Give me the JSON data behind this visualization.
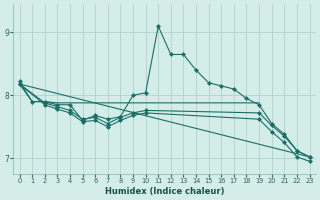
{
  "xlabel": "Humidex (Indice chaleur)",
  "bg_color": "#d4ede9",
  "line_color": "#1a6e66",
  "grid_color": "#a8ceca",
  "xlim": [
    -0.5,
    23.5
  ],
  "ylim": [
    6.75,
    9.45
  ],
  "yticks": [
    7,
    8,
    9
  ],
  "xticks": [
    0,
    1,
    2,
    3,
    4,
    5,
    6,
    7,
    8,
    9,
    10,
    11,
    12,
    13,
    14,
    15,
    16,
    17,
    18,
    19,
    20,
    21,
    22,
    23
  ],
  "series": [
    {
      "x": [
        0,
        1,
        2,
        3,
        4,
        5,
        6,
        7,
        8,
        9,
        10,
        11,
        12,
        13,
        14,
        15,
        16,
        17,
        18,
        19,
        20,
        21,
        22,
        23
      ],
      "y": [
        8.22,
        7.9,
        7.9,
        7.85,
        7.85,
        7.6,
        7.68,
        7.62,
        7.66,
        8.0,
        8.04,
        9.1,
        8.65,
        8.65,
        8.4,
        8.2,
        8.15,
        8.1,
        7.95,
        7.85,
        7.55,
        7.38,
        7.12,
        7.02
      ],
      "marker": true
    },
    {
      "x": [
        0,
        1,
        2,
        3,
        4,
        19
      ],
      "y": [
        8.18,
        7.9,
        7.9,
        7.88,
        7.88,
        7.88
      ],
      "marker": false
    },
    {
      "x": [
        0,
        2,
        3,
        4,
        5,
        6,
        7,
        8,
        9,
        10,
        19,
        20,
        21,
        22,
        23
      ],
      "y": [
        8.18,
        7.88,
        7.82,
        7.76,
        7.62,
        7.65,
        7.55,
        7.65,
        7.72,
        7.76,
        7.72,
        7.52,
        7.35,
        7.12,
        7.02
      ],
      "marker": true
    },
    {
      "x": [
        0,
        23
      ],
      "y": [
        8.18,
        7.02
      ],
      "marker": false
    },
    {
      "x": [
        0,
        2,
        3,
        4,
        5,
        6,
        7,
        8,
        9,
        10,
        19,
        20,
        21,
        22,
        23
      ],
      "y": [
        8.18,
        7.85,
        7.78,
        7.72,
        7.58,
        7.6,
        7.5,
        7.6,
        7.68,
        7.72,
        7.62,
        7.42,
        7.25,
        7.02,
        6.95
      ],
      "marker": true
    }
  ]
}
